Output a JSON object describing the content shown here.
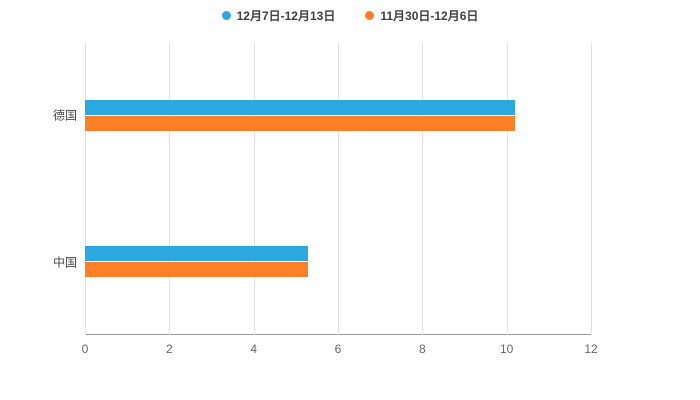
{
  "chart_data": {
    "type": "bar",
    "orientation": "horizontal",
    "title": "",
    "xlabel": "",
    "ylabel": "",
    "categories": [
      "德国",
      "中国"
    ],
    "series": [
      {
        "name": "12月7日-12月13日",
        "color": "#2ba8e0",
        "values": [
          10.2,
          5.3
        ]
      },
      {
        "name": "11月30日-12月6日",
        "color": "#ff7f27",
        "values": [
          10.2,
          5.3
        ]
      }
    ],
    "xlim": [
      0,
      12
    ],
    "xticks": [
      0,
      2,
      4,
      6,
      8,
      10,
      12
    ],
    "grid": true,
    "legend_position": "top",
    "background": "#ffffff",
    "gridline_color": "#e2e2e2",
    "axis_line_color": "#9a9a9a",
    "tick_label_color": "#666666",
    "category_label_color": "#4a4a4a"
  }
}
